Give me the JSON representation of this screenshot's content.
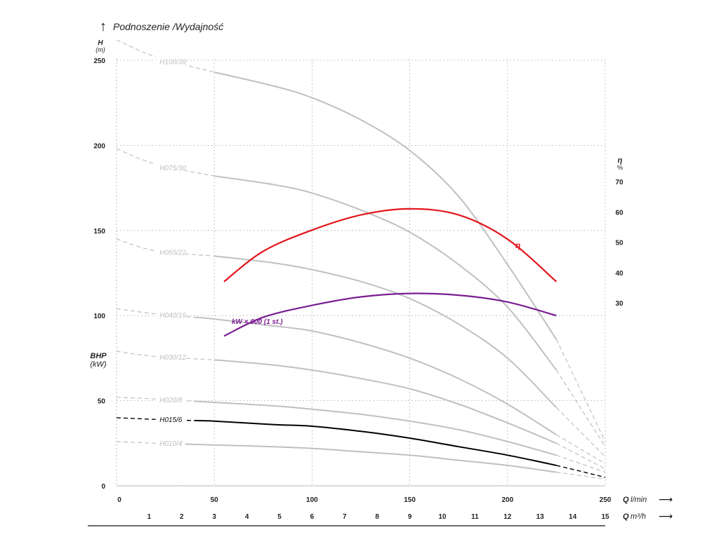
{
  "chart_data": {
    "type": "line",
    "title": "Podnoszenie /Wydajność",
    "y_axis": {
      "label": "H",
      "unit": "(m)",
      "range": [
        0,
        250
      ],
      "ticks": [
        "0",
        "50",
        "100",
        "150",
        "200",
        "250"
      ]
    },
    "bhp_axis": {
      "label": "BHP",
      "unit": "(kW)"
    },
    "eta_axis": {
      "label": "η",
      "unit": "%",
      "range": [
        20,
        70
      ],
      "ticks": [
        "30",
        "40",
        "50",
        "60",
        "70"
      ]
    },
    "x_axis": {
      "label": "Q",
      "unit": "l/min",
      "range": [
        0,
        250
      ],
      "ticks": [
        "0",
        "50",
        "100",
        "150",
        "200",
        "250"
      ]
    },
    "x2_axis": {
      "label": "Q",
      "unit": "m³/h",
      "range": [
        0,
        15
      ],
      "ticks": [
        "1",
        "2",
        "3",
        "4",
        "5",
        "6",
        "7",
        "8",
        "9",
        "10",
        "11",
        "12",
        "13",
        "14",
        "15"
      ]
    },
    "grid": true,
    "highlight_color": "#000000",
    "curve_color": "#c0c0c0",
    "series": [
      {
        "name": "H100/39",
        "highlight": false,
        "x": [
          0,
          20,
          50,
          80,
          100,
          125,
          150,
          175,
          200,
          225,
          250
        ],
        "y": [
          262,
          252,
          243,
          235,
          228,
          215,
          197,
          170,
          130,
          86,
          26
        ],
        "solid_range": [
          50,
          225
        ]
      },
      {
        "name": "H075/30",
        "highlight": false,
        "x": [
          0,
          20,
          50,
          80,
          100,
          125,
          150,
          175,
          200,
          225,
          250
        ],
        "y": [
          198,
          189,
          182,
          177,
          172,
          162,
          149,
          130,
          105,
          68,
          23
        ],
        "solid_range": [
          50,
          225
        ]
      },
      {
        "name": "H055/22",
        "highlight": false,
        "x": [
          0,
          20,
          50,
          80,
          100,
          125,
          150,
          175,
          200,
          225,
          250
        ],
        "y": [
          145,
          138,
          135,
          131,
          127,
          120,
          110,
          95,
          75,
          46,
          17
        ],
        "solid_range": [
          50,
          225
        ]
      },
      {
        "name": "H040/16",
        "highlight": false,
        "x": [
          0,
          20,
          50,
          80,
          100,
          125,
          150,
          175,
          200,
          225,
          250
        ],
        "y": [
          104,
          101,
          98,
          94,
          91,
          84,
          75,
          63,
          48,
          30,
          13
        ],
        "solid_range": [
          40,
          225
        ]
      },
      {
        "name": "H030/12",
        "highlight": false,
        "x": [
          0,
          20,
          50,
          80,
          100,
          125,
          150,
          175,
          200,
          225,
          250
        ],
        "y": [
          79,
          76,
          74,
          71,
          68,
          63,
          57,
          48,
          37,
          25,
          10
        ],
        "solid_range": [
          50,
          225
        ]
      },
      {
        "name": "H020/8",
        "highlight": false,
        "x": [
          0,
          20,
          50,
          80,
          100,
          125,
          150,
          175,
          200,
          225,
          250
        ],
        "y": [
          52,
          51,
          49,
          47,
          45,
          42,
          38,
          33,
          26,
          18,
          8
        ],
        "solid_range": [
          40,
          225
        ]
      },
      {
        "name": "H015/6",
        "highlight": true,
        "x": [
          0,
          20,
          50,
          80,
          100,
          125,
          150,
          175,
          200,
          225,
          250
        ],
        "y": [
          40,
          39,
          38,
          36,
          35,
          32,
          28,
          23,
          18,
          12,
          5
        ],
        "solid_range": [
          40,
          225
        ]
      },
      {
        "name": "H010/4",
        "highlight": false,
        "x": [
          0,
          20,
          50,
          80,
          100,
          125,
          150,
          175,
          200,
          225,
          250
        ],
        "y": [
          26,
          25,
          24,
          23,
          22,
          20,
          18,
          15,
          12,
          8,
          4
        ],
        "solid_range": [
          30,
          225
        ]
      }
    ],
    "efficiency": {
      "name": "η",
      "color": "#e3161d",
      "x": [
        55,
        75,
        100,
        125,
        150,
        175,
        200,
        225
      ],
      "y": [
        37,
        47,
        54,
        59,
        61,
        59,
        51,
        37
      ]
    },
    "power": {
      "name": "kW × 600 (1 st.)",
      "color": "#7a1e91",
      "x": [
        55,
        75,
        100,
        125,
        150,
        175,
        200,
        225
      ],
      "y": [
        88,
        99,
        106,
        111,
        113,
        112,
        108,
        100
      ]
    }
  }
}
